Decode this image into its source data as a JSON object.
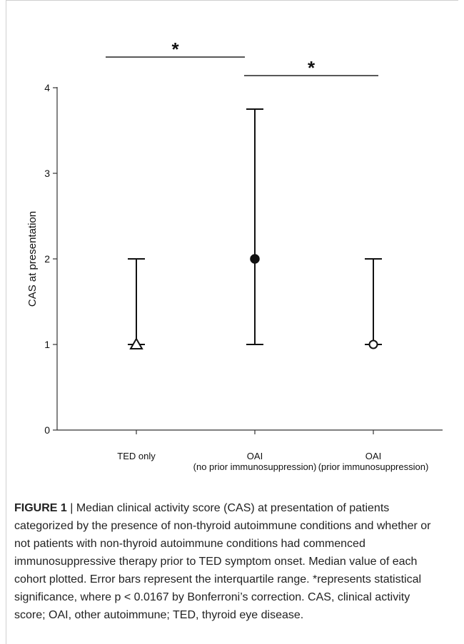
{
  "chart_data": {
    "type": "scatter",
    "ylabel": "CAS at presentation",
    "ylim": [
      0,
      4
    ],
    "yticks": [
      0,
      1,
      2,
      3,
      4
    ],
    "categories": [
      {
        "line1": "TED only",
        "line2": ""
      },
      {
        "line1": "OAI",
        "line2": "(no prior immunosuppression)"
      },
      {
        "line1": "OAI",
        "line2": "(prior immunosuppression)"
      }
    ],
    "points": [
      {
        "median": 1,
        "q1": 1,
        "q3": 2,
        "marker": "triangle-open"
      },
      {
        "median": 2,
        "q1": 1,
        "q3": 3.75,
        "marker": "circle-filled"
      },
      {
        "median": 1,
        "q1": 1,
        "q3": 2,
        "marker": "circle-open"
      }
    ],
    "significance": [
      {
        "from": 0,
        "to": 1,
        "label": "*"
      },
      {
        "from": 1,
        "to": 2,
        "label": "*"
      }
    ]
  },
  "caption": {
    "label": "FIGURE 1",
    "separator": " | ",
    "text": "Median clinical activity score (CAS) at presentation of patients categorized by the presence of non-thyroid autoimmune conditions and whether or not patients with non-thyroid autoimmune conditions had commenced immunosuppressive therapy prior to TED symptom onset. Median value of each cohort plotted. Error bars represent the interquartile range. *represents statistical significance, where p < 0.0167 by Bonferroni’s correction. CAS, clinical activity score; OAI, other autoimmune; TED, thyroid eye disease."
  }
}
